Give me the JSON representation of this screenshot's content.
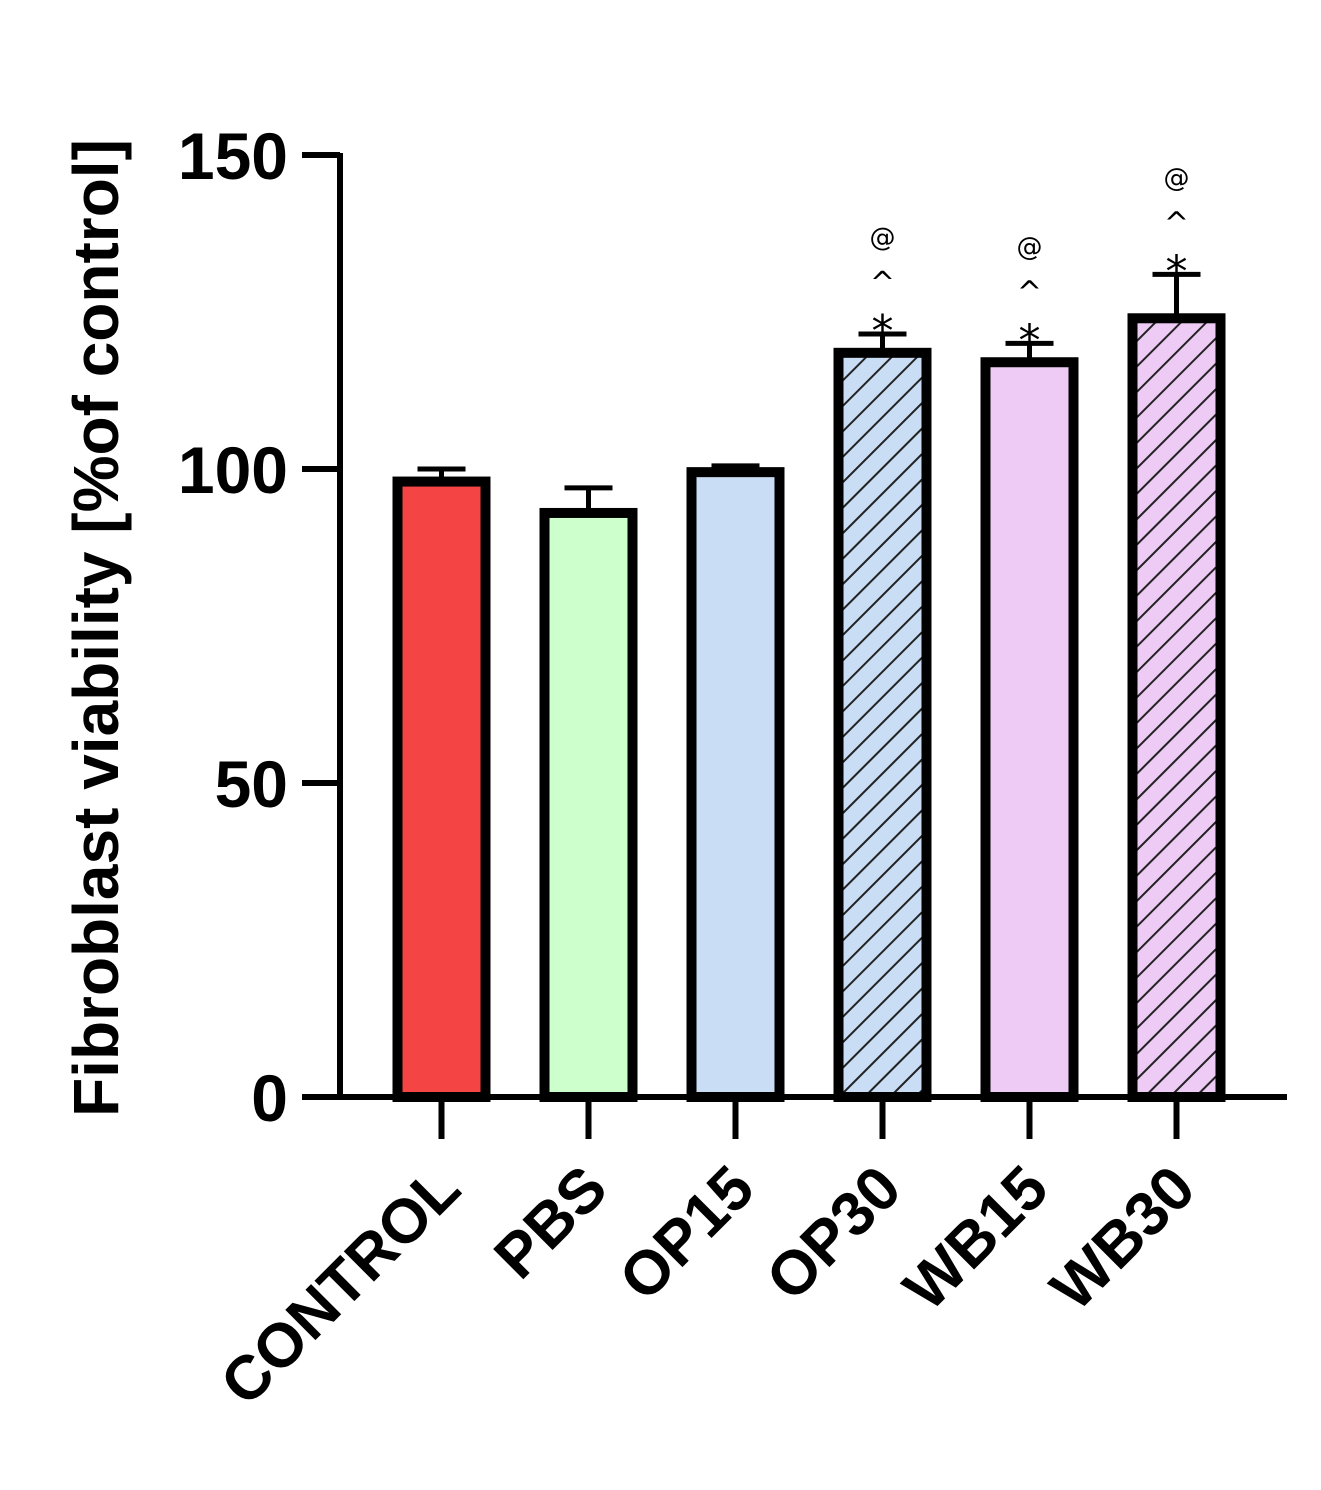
{
  "chart_data": {
    "type": "bar",
    "title": "",
    "xlabel": "",
    "ylabel": "Fibroblast viability [%of control]",
    "ylim": [
      0,
      150
    ],
    "yticks": [
      "0",
      "50",
      "100",
      "150"
    ],
    "categories": [
      "CONTROL",
      "PBS",
      "OP15",
      "OP30",
      "WB15",
      "WB30"
    ],
    "values": [
      98,
      93,
      99.5,
      118.5,
      117,
      124
    ],
    "errors": [
      2,
      4,
      1,
      3,
      3,
      7
    ],
    "colors": [
      "#f54444",
      "#ccffcc",
      "#c9ddf5",
      "#c9ddf5",
      "#eecbf5",
      "#eecbf5"
    ],
    "hatched": [
      false,
      false,
      false,
      true,
      false,
      true
    ],
    "annotations": [
      [],
      [],
      [],
      [
        "*",
        "^",
        "@"
      ],
      [
        "*",
        "^",
        "@"
      ],
      [
        "*",
        "^",
        "@"
      ]
    ],
    "grid": false,
    "legend": "none"
  }
}
